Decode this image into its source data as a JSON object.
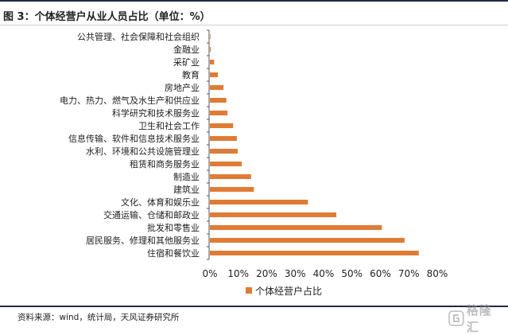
{
  "header": {
    "title": "图 3：个体经营户从业人员占比（单位：%）"
  },
  "footer": {
    "source": "资料来源：wind，统计局，天风证券研究所"
  },
  "watermark": {
    "text": "格隆汇",
    "icon": "gelonghui-logo-icon"
  },
  "chart_data": {
    "type": "bar",
    "orientation": "horizontal",
    "categories": [
      "公共管理、社会保障和社会组织",
      "金融业",
      "采矿业",
      "教育",
      "房地产业",
      "电力、热力、燃气及水生产和供应业",
      "科学研究和技术服务业",
      "卫生和社会工作",
      "信息传输、软件和信息技术服务业",
      "水利、环境和公共设施管理业",
      "租赁和商务服务业",
      "制造业",
      "建筑业",
      "文化、体育和娱乐业",
      "交通运输、仓储和邮政业",
      "批发和零售业",
      "居民服务、修理和其他服务业",
      "住宿和餐饮业"
    ],
    "series": [
      {
        "name": "个体经营户占比",
        "color": "#E07B35",
        "values": [
          0.2,
          0.3,
          1.5,
          2.8,
          4.8,
          5.8,
          6.2,
          8.2,
          9.5,
          9.8,
          11.2,
          14.5,
          15.5,
          34.5,
          44.5,
          60.5,
          68.5,
          73.5
        ]
      }
    ],
    "xlim": [
      0,
      80
    ],
    "xticks": [
      0,
      10,
      20,
      30,
      40,
      50,
      60,
      70,
      80
    ],
    "tick_format": "{v}%",
    "grid": false,
    "legend_position": "bottom"
  }
}
